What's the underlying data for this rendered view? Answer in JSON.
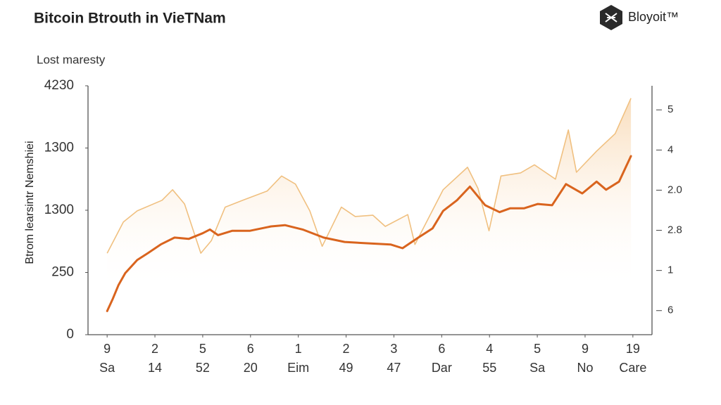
{
  "chart_data": {
    "type": "line",
    "title": "Bitcoin Btrouth in VieTNam",
    "logo": "Bloyoit™",
    "subtitle": "Lost maresty",
    "ylabel": "Btrom learsintr Nemshiei",
    "xlim": [
      -0.4,
      11.4
    ],
    "xticks": [
      {
        "value": 0,
        "label": "9"
      },
      {
        "value": 1,
        "label": "2"
      },
      {
        "value": 2,
        "label": "5"
      },
      {
        "value": 3,
        "label": "6"
      },
      {
        "value": 4,
        "label": "1"
      },
      {
        "value": 5,
        "label": "2"
      },
      {
        "value": 6,
        "label": "3"
      },
      {
        "value": 7,
        "label": "6"
      },
      {
        "value": 8,
        "label": "4"
      },
      {
        "value": 9,
        "label": "5"
      },
      {
        "value": 10,
        "label": "9"
      },
      {
        "value": 11,
        "label": "19"
      }
    ],
    "x_sublabels": [
      "Sa",
      "14",
      "52",
      "20",
      "Eim",
      "49",
      "47",
      "Dar",
      "55",
      "Sa",
      "No",
      "Care"
    ],
    "ylim": [
      0,
      4
    ],
    "yticks": [
      0,
      {
        "value": 1,
        "label": "250"
      },
      {
        "value": 2,
        "label": "1300"
      },
      {
        "value": 3,
        "label": "1300"
      },
      {
        "value": 4,
        "label": "4230"
      }
    ],
    "y2lim": [
      -0.6,
      5.6
    ],
    "y2ticks": [
      {
        "value": 0,
        "label": "6"
      },
      {
        "value": 1,
        "label": "1"
      },
      {
        "value": 2,
        "label": "2.8"
      },
      {
        "value": 3,
        "label": "2.0"
      },
      {
        "value": 4,
        "label": "4"
      },
      5
    ],
    "series": [
      {
        "color": "#f0c080",
        "fill": "area",
        "x": [
          0,
          0.34,
          0.63,
          1.15,
          1.37,
          1.62,
          1.96,
          2.18,
          2.47,
          2.84,
          3.35,
          3.65,
          3.94,
          4.24,
          4.5,
          4.9,
          5.19,
          5.56,
          5.82,
          6.29,
          6.44,
          7.03,
          7.54,
          7.76,
          7.99,
          8.24,
          8.65,
          8.94,
          9.38,
          9.65,
          9.82,
          10.24,
          10.63,
          10.96
        ],
        "values": [
          1.31,
          1.81,
          1.99,
          2.16,
          2.33,
          2.1,
          1.31,
          1.51,
          2.05,
          2.16,
          2.31,
          2.55,
          2.42,
          1.99,
          1.42,
          2.05,
          1.9,
          1.92,
          1.74,
          1.93,
          1.45,
          2.33,
          2.69,
          2.35,
          1.67,
          2.55,
          2.6,
          2.73,
          2.5,
          3.29,
          2.61,
          2.95,
          3.23,
          3.8
        ]
      },
      {
        "color": "#d9641e",
        "fill": "none",
        "x": [
          0,
          0.12,
          0.24,
          0.38,
          0.63,
          0.85,
          1.12,
          1.41,
          1.71,
          2,
          2.15,
          2.32,
          2.62,
          2.99,
          3.43,
          3.72,
          4.09,
          4.53,
          4.97,
          5.41,
          5.93,
          6.18,
          6.51,
          6.81,
          7.03,
          7.32,
          7.59,
          7.91,
          8.21,
          8.43,
          8.72,
          9.01,
          9.31,
          9.6,
          9.94,
          10.24,
          10.44,
          10.71,
          10.96
        ],
        "values": [
          0.38,
          0.58,
          0.8,
          0.99,
          1.2,
          1.31,
          1.45,
          1.56,
          1.54,
          1.63,
          1.69,
          1.6,
          1.67,
          1.67,
          1.74,
          1.76,
          1.69,
          1.56,
          1.49,
          1.47,
          1.45,
          1.39,
          1.56,
          1.71,
          1.99,
          2.16,
          2.38,
          2.08,
          1.97,
          2.03,
          2.03,
          2.1,
          2.08,
          2.42,
          2.27,
          2.46,
          2.33,
          2.46,
          2.87
        ]
      }
    ]
  }
}
